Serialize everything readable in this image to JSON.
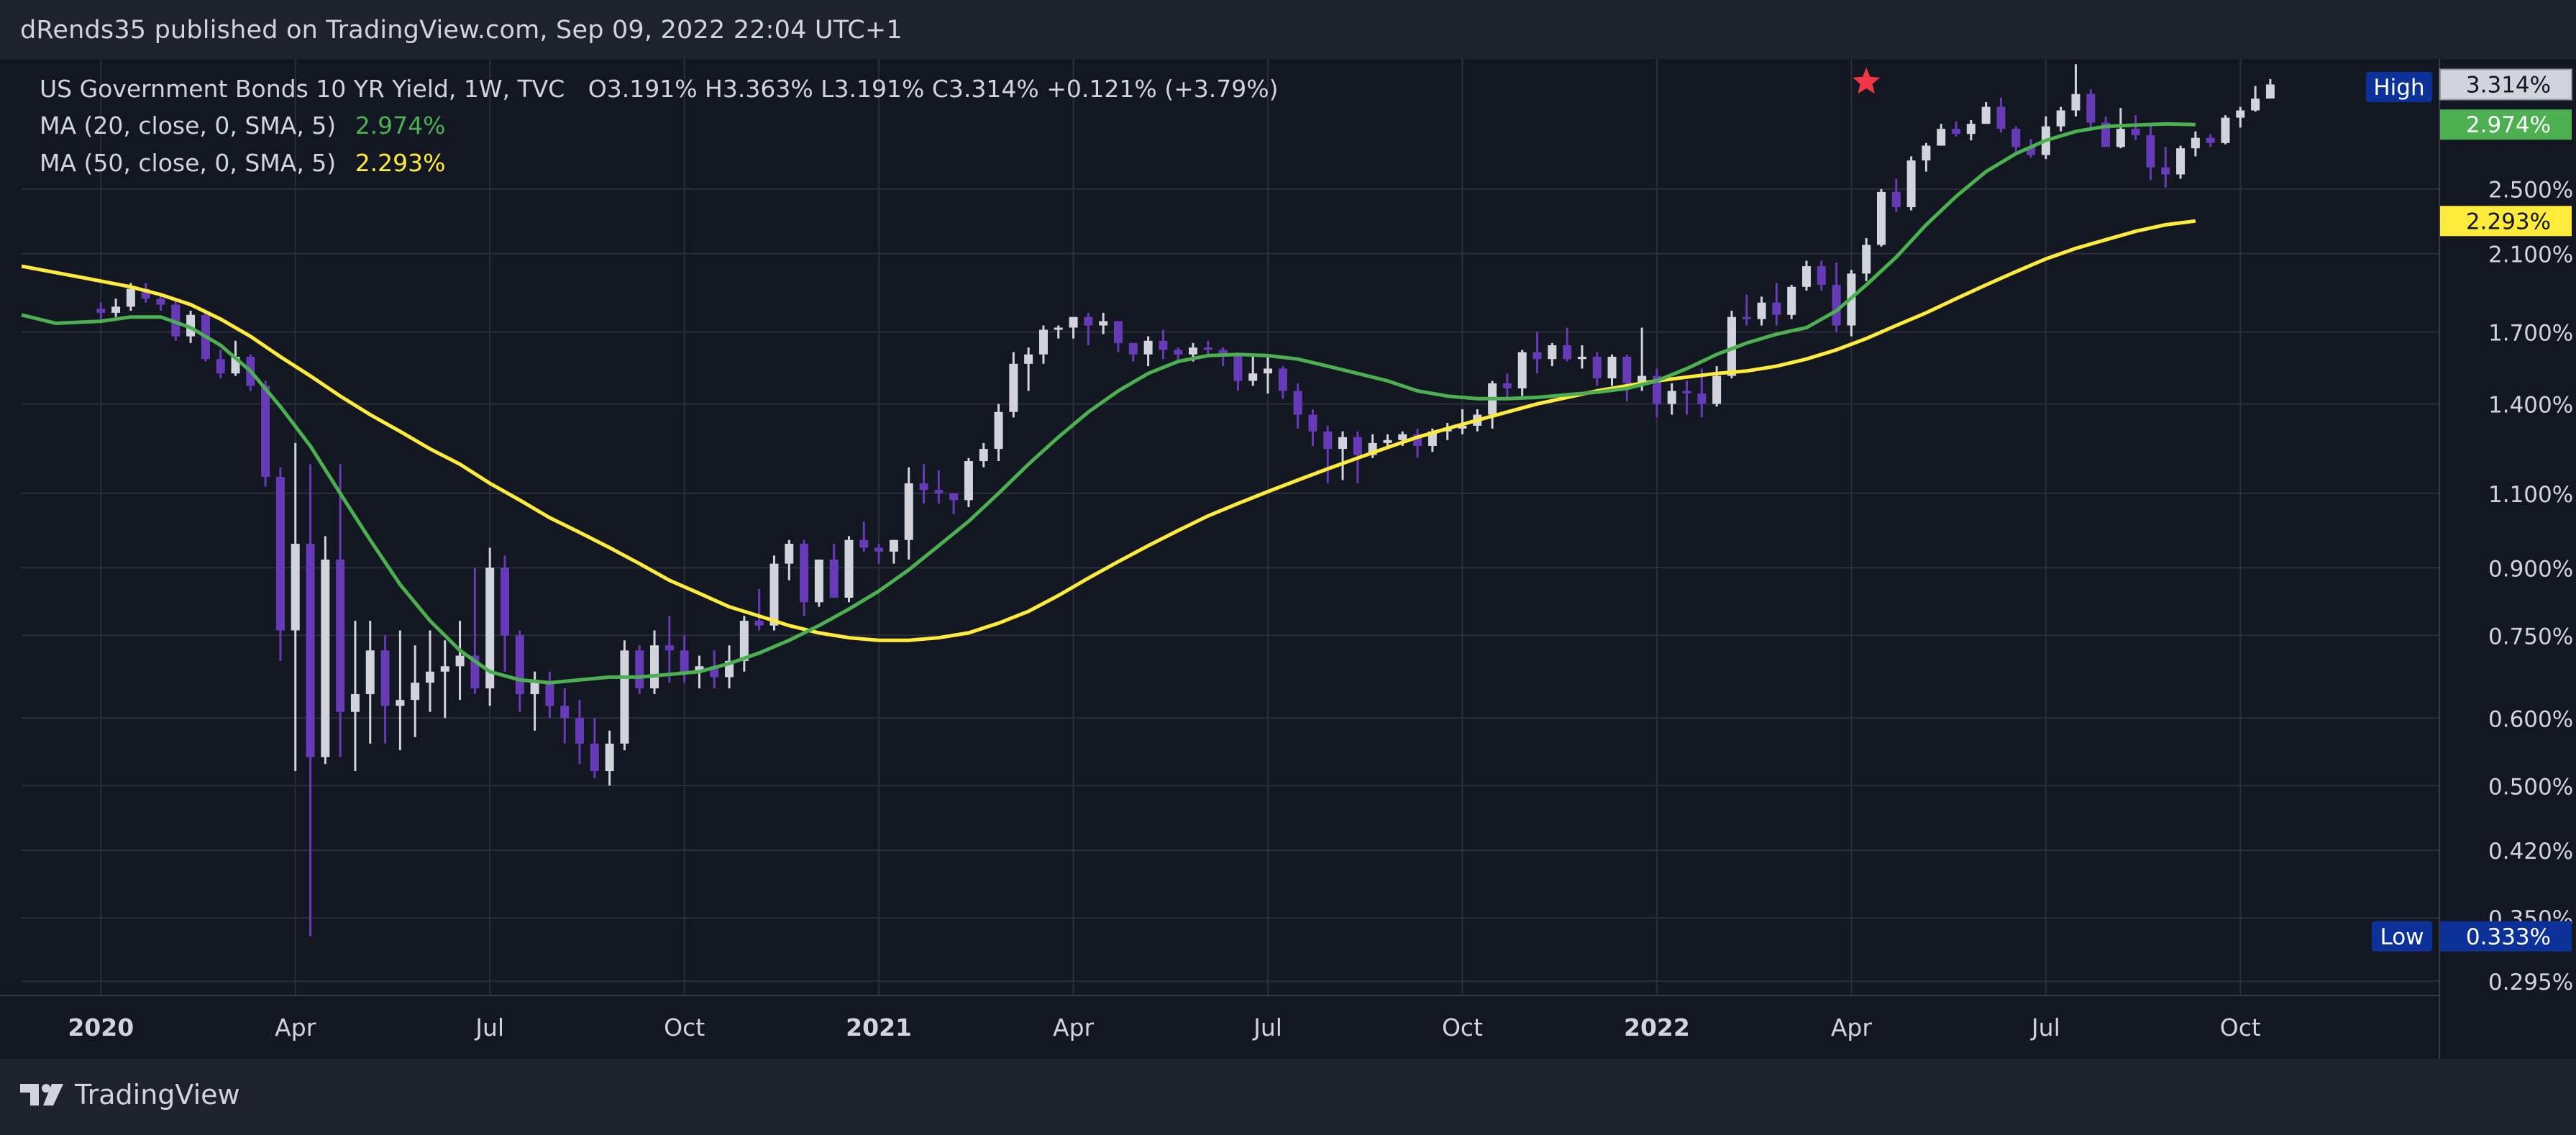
{
  "header": {
    "publish_text": "dRends35 published on TradingView.com, Sep 09, 2022 22:04 UTC+1"
  },
  "legend": {
    "symbol": "US Government Bonds 10 YR Yield, 1W, TVC",
    "ohlc": "O3.191%  H3.363%  L3.191%  C3.314%  +0.121% (+3.79%)",
    "ma20_label": "MA (20, close, 0, SMA, 5)",
    "ma20_value": "2.974%",
    "ma50_label": "MA (50, close, 0, SMA, 5)",
    "ma50_value": "2.293%"
  },
  "footer": {
    "brand": "TradingView"
  },
  "colors": {
    "background": "#131722",
    "frame": "#1e222d",
    "grid": "#2a2e39",
    "candle_up": "#d1d4dc",
    "candle_down": "#673ab7",
    "ma20": "#4caf50",
    "ma50": "#ffeb3b",
    "high_marker": "#f23645",
    "badge_blue": "#0c3299"
  },
  "chart_data": {
    "type": "candlestick",
    "title": "US Government Bonds 10 YR Yield, 1W, TVC",
    "scale": "log",
    "unit": "pct",
    "ylim": [
      0.285,
      3.55
    ],
    "y_ticks": [
      "0.295%",
      "0.350%",
      "0.420%",
      "0.500%",
      "0.600%",
      "0.750%",
      "0.900%",
      "1.100%",
      "1.400%",
      "1.700%",
      "2.100%",
      "2.500%"
    ],
    "x_ticks": [
      {
        "label": "2020",
        "t": 0,
        "bold": true
      },
      {
        "label": "Apr",
        "t": 13,
        "bold": false
      },
      {
        "label": "Jul",
        "t": 26,
        "bold": false
      },
      {
        "label": "Oct",
        "t": 39,
        "bold": false
      },
      {
        "label": "2021",
        "t": 52,
        "bold": true
      },
      {
        "label": "Apr",
        "t": 65,
        "bold": false
      },
      {
        "label": "Jul",
        "t": 78,
        "bold": false
      },
      {
        "label": "Oct",
        "t": 91,
        "bold": false
      },
      {
        "label": "2022",
        "t": 104,
        "bold": true
      },
      {
        "label": "Apr",
        "t": 117,
        "bold": false
      },
      {
        "label": "Jul",
        "t": 130,
        "bold": false
      },
      {
        "label": "Oct",
        "t": 143,
        "bold": false
      }
    ],
    "x_range": [
      -5.3,
      156.3
    ],
    "price_labels": {
      "axis_title": "pct",
      "last": "3.314%",
      "ma20": "2.974%",
      "ma50": "2.293%",
      "high_label": "High",
      "low_label": "Low",
      "low": "0.333%"
    },
    "high_marker_t": 118,
    "ohlc": [
      [
        1.81,
        1.84,
        1.76,
        1.79
      ],
      [
        1.79,
        1.86,
        1.77,
        1.82
      ],
      [
        1.82,
        1.94,
        1.8,
        1.91
      ],
      [
        1.91,
        1.94,
        1.84,
        1.86
      ],
      [
        1.86,
        1.88,
        1.8,
        1.83
      ],
      [
        1.83,
        1.85,
        1.66,
        1.68
      ],
      [
        1.68,
        1.8,
        1.65,
        1.78
      ],
      [
        1.78,
        1.79,
        1.57,
        1.58
      ],
      [
        1.58,
        1.62,
        1.5,
        1.52
      ],
      [
        1.52,
        1.66,
        1.51,
        1.59
      ],
      [
        1.59,
        1.6,
        1.45,
        1.47
      ],
      [
        1.47,
        1.49,
        1.12,
        1.15
      ],
      [
        1.15,
        1.18,
        0.7,
        0.76
      ],
      [
        0.76,
        1.26,
        0.52,
        0.96
      ],
      [
        0.96,
        1.19,
        0.333,
        0.54
      ],
      [
        0.54,
        0.98,
        0.53,
        0.92
      ],
      [
        0.92,
        1.19,
        0.54,
        0.61
      ],
      [
        0.61,
        0.78,
        0.52,
        0.64
      ],
      [
        0.64,
        0.78,
        0.56,
        0.72
      ],
      [
        0.72,
        0.75,
        0.56,
        0.62
      ],
      [
        0.62,
        0.76,
        0.55,
        0.63
      ],
      [
        0.63,
        0.73,
        0.57,
        0.66
      ],
      [
        0.66,
        0.76,
        0.61,
        0.68
      ],
      [
        0.68,
        0.74,
        0.6,
        0.69
      ],
      [
        0.69,
        0.78,
        0.63,
        0.71
      ],
      [
        0.71,
        0.9,
        0.64,
        0.65
      ],
      [
        0.65,
        0.95,
        0.62,
        0.9
      ],
      [
        0.9,
        0.93,
        0.68,
        0.75
      ],
      [
        0.75,
        0.76,
        0.61,
        0.64
      ],
      [
        0.64,
        0.68,
        0.58,
        0.66
      ],
      [
        0.66,
        0.68,
        0.6,
        0.62
      ],
      [
        0.62,
        0.65,
        0.56,
        0.6
      ],
      [
        0.6,
        0.63,
        0.53,
        0.56
      ],
      [
        0.56,
        0.6,
        0.51,
        0.52
      ],
      [
        0.52,
        0.58,
        0.5,
        0.56
      ],
      [
        0.56,
        0.74,
        0.55,
        0.72
      ],
      [
        0.72,
        0.73,
        0.64,
        0.65
      ],
      [
        0.65,
        0.76,
        0.64,
        0.73
      ],
      [
        0.73,
        0.79,
        0.66,
        0.72
      ],
      [
        0.72,
        0.75,
        0.66,
        0.68
      ],
      [
        0.68,
        0.71,
        0.65,
        0.69
      ],
      [
        0.69,
        0.72,
        0.65,
        0.67
      ],
      [
        0.67,
        0.73,
        0.65,
        0.7
      ],
      [
        0.7,
        0.79,
        0.68,
        0.78
      ],
      [
        0.78,
        0.85,
        0.76,
        0.77
      ],
      [
        0.77,
        0.93,
        0.76,
        0.91
      ],
      [
        0.91,
        0.97,
        0.87,
        0.96
      ],
      [
        0.96,
        0.97,
        0.79,
        0.82
      ],
      [
        0.82,
        0.92,
        0.81,
        0.92
      ],
      [
        0.92,
        0.96,
        0.83,
        0.83
      ],
      [
        0.83,
        0.98,
        0.82,
        0.97
      ],
      [
        0.97,
        1.02,
        0.94,
        0.95
      ],
      [
        0.95,
        0.96,
        0.91,
        0.94
      ],
      [
        0.94,
        0.97,
        0.91,
        0.97
      ],
      [
        0.97,
        1.18,
        0.92,
        1.13
      ],
      [
        1.13,
        1.19,
        1.07,
        1.11
      ],
      [
        1.11,
        1.17,
        1.07,
        1.1
      ],
      [
        1.1,
        1.1,
        1.04,
        1.08
      ],
      [
        1.08,
        1.21,
        1.06,
        1.2
      ],
      [
        1.2,
        1.26,
        1.18,
        1.24
      ],
      [
        1.24,
        1.4,
        1.2,
        1.37
      ],
      [
        1.37,
        1.61,
        1.35,
        1.56
      ],
      [
        1.56,
        1.63,
        1.45,
        1.6
      ],
      [
        1.6,
        1.73,
        1.56,
        1.71
      ],
      [
        1.71,
        1.73,
        1.67,
        1.72
      ],
      [
        1.72,
        1.77,
        1.67,
        1.77
      ],
      [
        1.77,
        1.79,
        1.64,
        1.73
      ],
      [
        1.73,
        1.79,
        1.69,
        1.75
      ],
      [
        1.75,
        1.75,
        1.61,
        1.65
      ],
      [
        1.65,
        1.65,
        1.57,
        1.6
      ],
      [
        1.6,
        1.68,
        1.55,
        1.66
      ],
      [
        1.66,
        1.71,
        1.58,
        1.62
      ],
      [
        1.62,
        1.63,
        1.57,
        1.6
      ],
      [
        1.6,
        1.65,
        1.57,
        1.63
      ],
      [
        1.63,
        1.66,
        1.59,
        1.62
      ],
      [
        1.62,
        1.63,
        1.55,
        1.6
      ],
      [
        1.6,
        1.6,
        1.45,
        1.49
      ],
      [
        1.49,
        1.59,
        1.47,
        1.52
      ],
      [
        1.52,
        1.6,
        1.44,
        1.54
      ],
      [
        1.54,
        1.55,
        1.42,
        1.45
      ],
      [
        1.45,
        1.48,
        1.31,
        1.36
      ],
      [
        1.36,
        1.38,
        1.25,
        1.3
      ],
      [
        1.3,
        1.32,
        1.13,
        1.24
      ],
      [
        1.24,
        1.3,
        1.14,
        1.28
      ],
      [
        1.28,
        1.3,
        1.13,
        1.22
      ],
      [
        1.22,
        1.29,
        1.21,
        1.26
      ],
      [
        1.26,
        1.29,
        1.24,
        1.27
      ],
      [
        1.27,
        1.3,
        1.25,
        1.29
      ],
      [
        1.29,
        1.31,
        1.21,
        1.25
      ],
      [
        1.25,
        1.31,
        1.23,
        1.3
      ],
      [
        1.3,
        1.33,
        1.27,
        1.31
      ],
      [
        1.31,
        1.38,
        1.29,
        1.32
      ],
      [
        1.32,
        1.38,
        1.3,
        1.36
      ],
      [
        1.36,
        1.49,
        1.31,
        1.48
      ],
      [
        1.48,
        1.52,
        1.42,
        1.46
      ],
      [
        1.46,
        1.62,
        1.43,
        1.61
      ],
      [
        1.61,
        1.7,
        1.52,
        1.58
      ],
      [
        1.58,
        1.65,
        1.55,
        1.64
      ],
      [
        1.64,
        1.72,
        1.57,
        1.58
      ],
      [
        1.58,
        1.64,
        1.54,
        1.59
      ],
      [
        1.59,
        1.61,
        1.47,
        1.5
      ],
      [
        1.5,
        1.6,
        1.47,
        1.59
      ],
      [
        1.59,
        1.6,
        1.41,
        1.48
      ],
      [
        1.48,
        1.72,
        1.45,
        1.51
      ],
      [
        1.51,
        1.54,
        1.35,
        1.4
      ],
      [
        1.4,
        1.48,
        1.36,
        1.45
      ],
      [
        1.45,
        1.49,
        1.36,
        1.44
      ],
      [
        1.44,
        1.54,
        1.35,
        1.4
      ],
      [
        1.4,
        1.55,
        1.39,
        1.51
      ],
      [
        1.51,
        1.8,
        1.5,
        1.77
      ],
      [
        1.77,
        1.88,
        1.73,
        1.76
      ],
      [
        1.76,
        1.87,
        1.73,
        1.84
      ],
      [
        1.84,
        1.94,
        1.73,
        1.78
      ],
      [
        1.78,
        1.93,
        1.76,
        1.92
      ],
      [
        1.92,
        2.06,
        1.9,
        2.03
      ],
      [
        2.03,
        2.06,
        1.9,
        1.93
      ],
      [
        1.93,
        2.05,
        1.7,
        1.73
      ],
      [
        1.73,
        2.01,
        1.68,
        1.99
      ],
      [
        1.99,
        2.19,
        1.95,
        2.15
      ],
      [
        2.15,
        2.5,
        2.14,
        2.48
      ],
      [
        2.48,
        2.57,
        2.35,
        2.38
      ],
      [
        2.38,
        2.73,
        2.36,
        2.7
      ],
      [
        2.7,
        2.83,
        2.62,
        2.81
      ],
      [
        2.81,
        2.98,
        2.81,
        2.94
      ],
      [
        2.94,
        3.0,
        2.88,
        2.9
      ],
      [
        2.9,
        3.01,
        2.85,
        2.98
      ],
      [
        2.98,
        3.16,
        2.98,
        3.12
      ],
      [
        3.12,
        3.2,
        2.91,
        2.94
      ],
      [
        2.94,
        2.96,
        2.76,
        2.8
      ],
      [
        2.8,
        2.86,
        2.72,
        2.74
      ],
      [
        2.74,
        3.04,
        2.71,
        2.96
      ],
      [
        2.96,
        3.12,
        2.92,
        3.09
      ],
      [
        3.09,
        3.5,
        3.04,
        3.23
      ],
      [
        3.23,
        3.27,
        2.94,
        2.99
      ],
      [
        2.99,
        3.04,
        2.8,
        2.8
      ],
      [
        2.8,
        3.11,
        2.79,
        2.94
      ],
      [
        2.94,
        3.05,
        2.85,
        2.89
      ],
      [
        2.89,
        2.97,
        2.56,
        2.65
      ],
      [
        2.65,
        2.8,
        2.51,
        2.6
      ],
      [
        2.6,
        2.81,
        2.57,
        2.79
      ],
      [
        2.79,
        2.92,
        2.73,
        2.87
      ],
      [
        2.87,
        2.9,
        2.8,
        2.83
      ],
      [
        2.83,
        3.05,
        2.82,
        3.03
      ],
      [
        3.03,
        3.12,
        2.95,
        3.09
      ],
      [
        3.09,
        3.3,
        3.08,
        3.19
      ],
      [
        3.191,
        3.363,
        3.191,
        3.314
      ]
    ],
    "ma20": [
      [
        -5.3,
        1.78
      ],
      [
        -3.0,
        1.74
      ],
      [
        0,
        1.75
      ],
      [
        2,
        1.77
      ],
      [
        4,
        1.77
      ],
      [
        6,
        1.72
      ],
      [
        8,
        1.64
      ],
      [
        10,
        1.53
      ],
      [
        12,
        1.39
      ],
      [
        14,
        1.25
      ],
      [
        16,
        1.1
      ],
      [
        18,
        0.97
      ],
      [
        20,
        0.86
      ],
      [
        22,
        0.78
      ],
      [
        24,
        0.72
      ],
      [
        26,
        0.68
      ],
      [
        28,
        0.665
      ],
      [
        30,
        0.66
      ],
      [
        32,
        0.665
      ],
      [
        34,
        0.67
      ],
      [
        36,
        0.67
      ],
      [
        38,
        0.675
      ],
      [
        40,
        0.68
      ],
      [
        42,
        0.695
      ],
      [
        44,
        0.715
      ],
      [
        46,
        0.74
      ],
      [
        48,
        0.77
      ],
      [
        50,
        0.805
      ],
      [
        52,
        0.845
      ],
      [
        54,
        0.895
      ],
      [
        56,
        0.955
      ],
      [
        58,
        1.02
      ],
      [
        60,
        1.1
      ],
      [
        62,
        1.19
      ],
      [
        64,
        1.28
      ],
      [
        66,
        1.37
      ],
      [
        68,
        1.45
      ],
      [
        70,
        1.52
      ],
      [
        72,
        1.57
      ],
      [
        74,
        1.595
      ],
      [
        76,
        1.6
      ],
      [
        78,
        1.595
      ],
      [
        80,
        1.58
      ],
      [
        82,
        1.55
      ],
      [
        84,
        1.52
      ],
      [
        86,
        1.49
      ],
      [
        88,
        1.45
      ],
      [
        90,
        1.43
      ],
      [
        92,
        1.42
      ],
      [
        94,
        1.42
      ],
      [
        96,
        1.425
      ],
      [
        98,
        1.435
      ],
      [
        100,
        1.445
      ],
      [
        102,
        1.46
      ],
      [
        104,
        1.49
      ],
      [
        106,
        1.54
      ],
      [
        108,
        1.6
      ],
      [
        110,
        1.65
      ],
      [
        112,
        1.69
      ],
      [
        114,
        1.72
      ],
      [
        116,
        1.8
      ],
      [
        118,
        1.93
      ],
      [
        120,
        2.08
      ],
      [
        122,
        2.27
      ],
      [
        124,
        2.45
      ],
      [
        126,
        2.62
      ],
      [
        128,
        2.75
      ],
      [
        130,
        2.85
      ],
      [
        132,
        2.92
      ],
      [
        134,
        2.96
      ],
      [
        136,
        2.97
      ],
      [
        138,
        2.98
      ],
      [
        140,
        2.974
      ]
    ],
    "ma50": [
      [
        -5.3,
        2.03
      ],
      [
        -2,
        1.98
      ],
      [
        0,
        1.95
      ],
      [
        2,
        1.92
      ],
      [
        4,
        1.88
      ],
      [
        6,
        1.83
      ],
      [
        8,
        1.76
      ],
      [
        10,
        1.68
      ],
      [
        12,
        1.59
      ],
      [
        14,
        1.51
      ],
      [
        16,
        1.43
      ],
      [
        18,
        1.36
      ],
      [
        20,
        1.3
      ],
      [
        22,
        1.24
      ],
      [
        24,
        1.19
      ],
      [
        26,
        1.13
      ],
      [
        28,
        1.08
      ],
      [
        30,
        1.03
      ],
      [
        32,
        0.99
      ],
      [
        34,
        0.95
      ],
      [
        36,
        0.91
      ],
      [
        38,
        0.87
      ],
      [
        40,
        0.84
      ],
      [
        42,
        0.81
      ],
      [
        44,
        0.79
      ],
      [
        46,
        0.77
      ],
      [
        48,
        0.755
      ],
      [
        50,
        0.745
      ],
      [
        52,
        0.74
      ],
      [
        54,
        0.74
      ],
      [
        56,
        0.745
      ],
      [
        58,
        0.755
      ],
      [
        60,
        0.775
      ],
      [
        62,
        0.8
      ],
      [
        64,
        0.835
      ],
      [
        66,
        0.875
      ],
      [
        68,
        0.915
      ],
      [
        70,
        0.955
      ],
      [
        72,
        0.995
      ],
      [
        74,
        1.035
      ],
      [
        76,
        1.07
      ],
      [
        78,
        1.105
      ],
      [
        80,
        1.14
      ],
      [
        82,
        1.175
      ],
      [
        84,
        1.21
      ],
      [
        86,
        1.245
      ],
      [
        88,
        1.28
      ],
      [
        90,
        1.31
      ],
      [
        92,
        1.34
      ],
      [
        94,
        1.37
      ],
      [
        96,
        1.4
      ],
      [
        98,
        1.425
      ],
      [
        100,
        1.45
      ],
      [
        102,
        1.47
      ],
      [
        104,
        1.49
      ],
      [
        106,
        1.505
      ],
      [
        108,
        1.52
      ],
      [
        110,
        1.53
      ],
      [
        112,
        1.55
      ],
      [
        114,
        1.58
      ],
      [
        116,
        1.62
      ],
      [
        118,
        1.67
      ],
      [
        120,
        1.73
      ],
      [
        122,
        1.79
      ],
      [
        124,
        1.86
      ],
      [
        126,
        1.93
      ],
      [
        128,
        2.0
      ],
      [
        130,
        2.07
      ],
      [
        132,
        2.13
      ],
      [
        134,
        2.18
      ],
      [
        136,
        2.23
      ],
      [
        138,
        2.27
      ],
      [
        140,
        2.293
      ]
    ]
  }
}
